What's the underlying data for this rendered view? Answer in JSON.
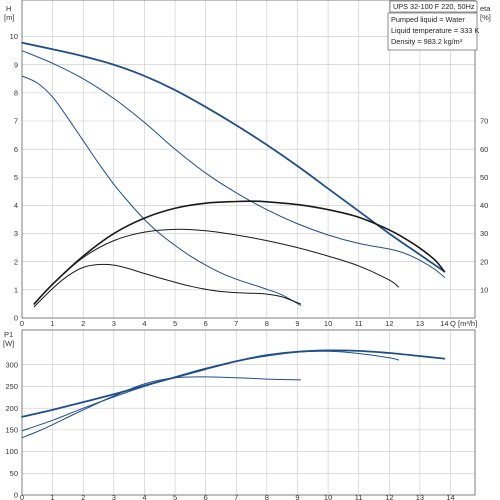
{
  "chart_data": [
    {
      "type": "line",
      "panel": "pump head and efficiency",
      "info_box": {
        "title": "UPS 32-100 F 220, 50Hz",
        "lines": [
          "Pumped liquid = Water",
          "Liquid temperature = 333 K",
          "Density = 983.2 kg/m³"
        ]
      },
      "ylabel": "H",
      "yunit": "[m]",
      "y2label": "eta",
      "y2unit": "[%]",
      "xlabel": "Q",
      "xunit": "[m³/h]",
      "xlim": [
        0,
        14.8
      ],
      "ylim": [
        0,
        11.3
      ],
      "y2lim": [
        0,
        113
      ],
      "x_ticks": [
        0,
        1,
        2,
        3,
        4,
        5,
        6,
        7,
        8,
        9,
        10,
        11,
        12,
        13,
        14
      ],
      "y_ticks": [
        1,
        2,
        3,
        4,
        5,
        6,
        7,
        8,
        9,
        10
      ],
      "y2_ticks": [
        10,
        20,
        30,
        40,
        50,
        60,
        70
      ],
      "grid": true,
      "colors": {
        "head": "#1f4e8c",
        "efficiency": "#1a1a1a",
        "grid": "#c8c8c8"
      },
      "series": [
        {
          "kind": "head",
          "axis": "left",
          "width": 1.8,
          "x": [
            0,
            1,
            2,
            3,
            4,
            5,
            6,
            7,
            8,
            9,
            10,
            11,
            12,
            13,
            13.8
          ],
          "y": [
            9.78,
            9.55,
            9.3,
            9.0,
            8.6,
            8.1,
            7.5,
            6.85,
            6.15,
            5.4,
            4.6,
            3.8,
            3.0,
            2.25,
            1.65
          ]
        },
        {
          "kind": "head",
          "axis": "left",
          "width": 1.0,
          "x": [
            0,
            1,
            2,
            3,
            4,
            5,
            6,
            7,
            8,
            9,
            10,
            11,
            12,
            12.5,
            13,
            13.5,
            13.8
          ],
          "y": [
            9.5,
            9.05,
            8.5,
            7.8,
            6.95,
            6.0,
            5.15,
            4.45,
            3.85,
            3.35,
            2.95,
            2.65,
            2.45,
            2.3,
            2.05,
            1.72,
            1.45
          ]
        },
        {
          "kind": "head",
          "axis": "left",
          "width": 1.0,
          "x": [
            0,
            0.5,
            1,
            1.5,
            2,
            2.5,
            3,
            3.5,
            4,
            4.5,
            5,
            5.5,
            6,
            6.5,
            7,
            7.5,
            8,
            8.5,
            9.1
          ],
          "y": [
            8.6,
            8.35,
            7.85,
            7.1,
            6.3,
            5.5,
            4.75,
            4.1,
            3.5,
            3.0,
            2.58,
            2.2,
            1.88,
            1.6,
            1.38,
            1.2,
            1.02,
            0.82,
            0.45
          ]
        },
        {
          "kind": "efficiency",
          "axis": "right",
          "width": 1.6,
          "x": [
            0.4,
            1,
            2,
            3,
            4,
            5,
            6,
            7,
            7.5,
            8,
            9,
            10,
            11,
            12,
            12.5,
            13,
            13.5,
            13.8
          ],
          "y": [
            5,
            12,
            22,
            30,
            35.5,
            39,
            40.8,
            41.4,
            41.5,
            41.3,
            40.3,
            38.5,
            35.8,
            31.3,
            28.3,
            24.8,
            20.5,
            16.5
          ]
        },
        {
          "kind": "efficiency",
          "axis": "right",
          "width": 1.0,
          "x": [
            0.4,
            1,
            2,
            3,
            4,
            5,
            6,
            7,
            8,
            9,
            10,
            11,
            12,
            12.3
          ],
          "y": [
            5,
            12,
            21.5,
            27.5,
            30.5,
            31.5,
            31,
            29.5,
            27.5,
            25,
            22,
            18.5,
            13.5,
            11
          ]
        },
        {
          "kind": "efficiency",
          "axis": "right",
          "width": 1.0,
          "x": [
            0.4,
            1,
            1.5,
            2,
            2.5,
            3,
            3.5,
            4,
            4.5,
            5,
            5.5,
            6,
            6.5,
            7,
            7.5,
            8,
            8.5,
            9.1
          ],
          "y": [
            4,
            10.5,
            15,
            18,
            19,
            18.8,
            17.5,
            15.8,
            14.2,
            12.7,
            11.3,
            10.2,
            9.4,
            9,
            8.8,
            8.5,
            7.5,
            5
          ]
        }
      ]
    },
    {
      "type": "line",
      "panel": "power consumption",
      "ylabel": "P1",
      "yunit": "[W]",
      "xlim": [
        0,
        14.8
      ],
      "ylim": [
        0,
        380
      ],
      "y_ticks": [
        50,
        100,
        150,
        200,
        250,
        300
      ],
      "grid": true,
      "colors": {
        "power": "#1f4e8c"
      },
      "series": [
        {
          "kind": "power",
          "width": 1.8,
          "x": [
            0,
            1,
            2,
            3,
            4,
            5,
            6,
            7,
            8,
            9,
            10,
            11,
            12,
            13,
            13.8
          ],
          "y": [
            180,
            196,
            214,
            232,
            252,
            271,
            290,
            308,
            322,
            330,
            333,
            332,
            327,
            320,
            314
          ]
        },
        {
          "kind": "power",
          "width": 1.0,
          "x": [
            0,
            1,
            2,
            3,
            4,
            5,
            6,
            7,
            8,
            9,
            10,
            11,
            12,
            12.3
          ],
          "y": [
            148,
            172,
            200,
            226,
            250,
            272,
            292,
            308,
            320,
            329,
            331,
            326,
            316,
            311
          ]
        },
        {
          "kind": "power",
          "width": 1.0,
          "x": [
            0,
            0.5,
            1,
            2,
            3,
            4,
            5,
            6,
            7,
            8,
            9.1
          ],
          "y": [
            132,
            146,
            162,
            196,
            228,
            256,
            270,
            272,
            270,
            267,
            265
          ]
        }
      ]
    }
  ]
}
